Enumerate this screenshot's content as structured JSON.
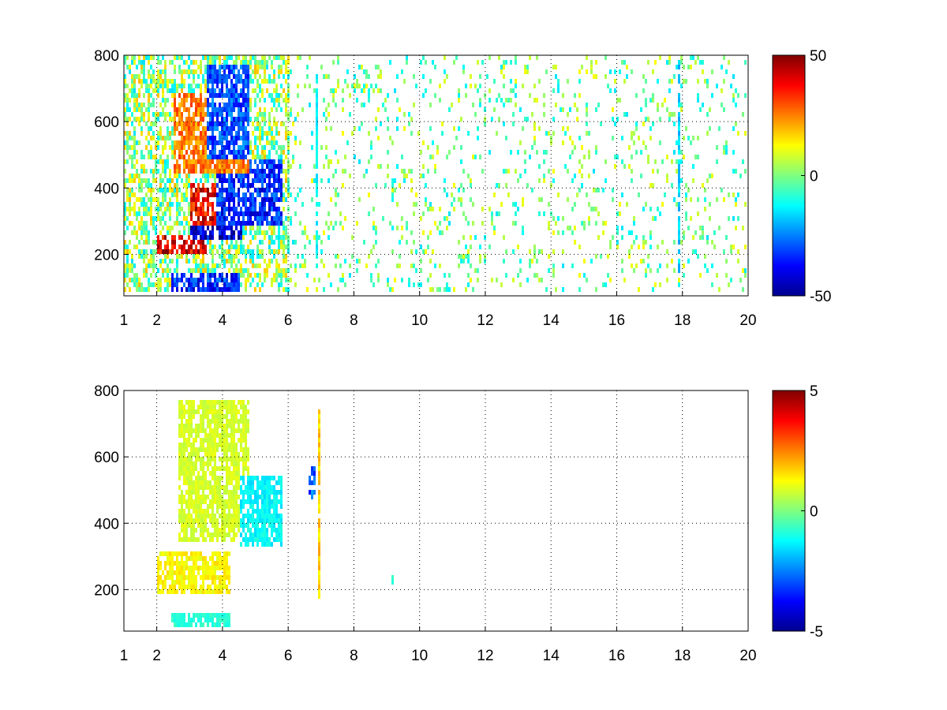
{
  "chart_data": [
    {
      "type": "heatmap",
      "title": "",
      "xlabel": "",
      "ylabel": "",
      "xlim": [
        1,
        20
      ],
      "ylim": [
        75,
        800
      ],
      "xticks": [
        1,
        2,
        4,
        6,
        8,
        10,
        12,
        14,
        16,
        18,
        20
      ],
      "xtick_labels": [
        "1",
        "2",
        "4",
        "6",
        "8",
        "10",
        "12",
        "14",
        "16",
        "18",
        "20"
      ],
      "yticks": [
        200,
        400,
        600,
        800
      ],
      "ytick_labels": [
        "200",
        "400",
        "600",
        "800"
      ],
      "grid": true,
      "colormap": "jet",
      "colorbar": {
        "range": [
          -50,
          50
        ],
        "ticks": [
          50,
          0,
          -50
        ],
        "tick_labels": [
          "50",
          "0",
          "-50"
        ]
      },
      "features": [
        {
          "x_range": [
            2.0,
            3.5
          ],
          "y": 240,
          "value": 50
        },
        {
          "x_range": [
            3.0,
            4.5
          ],
          "y_range": [
            300,
            420
          ],
          "value": 45
        },
        {
          "x_range": [
            3.0,
            4.6
          ],
          "y_range": [
            250,
            300
          ],
          "value": -50
        },
        {
          "x_range": [
            3.8,
            5.8
          ],
          "y_range": [
            300,
            500
          ],
          "value": -40
        },
        {
          "x_range": [
            2.5,
            4.8
          ],
          "y_range": [
            450,
            700
          ],
          "value": 30
        },
        {
          "x_range": [
            3.5,
            4.8
          ],
          "y_range": [
            500,
            780
          ],
          "value": -35
        },
        {
          "x_range": [
            2.4,
            4.5
          ],
          "y": 120,
          "value": -40
        },
        {
          "x_range": [
            6.8,
            6.9
          ],
          "y_range": [
            150,
            750
          ],
          "value": -15
        },
        {
          "x_range": [
            17.8,
            17.9
          ],
          "y_range": [
            150,
            800
          ],
          "value": -20
        }
      ]
    },
    {
      "type": "heatmap",
      "title": "",
      "xlabel": "",
      "ylabel": "",
      "xlim": [
        1,
        20
      ],
      "ylim": [
        75,
        800
      ],
      "xticks": [
        1,
        2,
        4,
        6,
        8,
        10,
        12,
        14,
        16,
        18,
        20
      ],
      "xtick_labels": [
        "1",
        "2",
        "4",
        "6",
        "8",
        "10",
        "12",
        "14",
        "16",
        "18",
        "20"
      ],
      "yticks": [
        200,
        400,
        600,
        800
      ],
      "ytick_labels": [
        "200",
        "400",
        "600",
        "800"
      ],
      "grid": true,
      "colormap": "jet",
      "colorbar": {
        "range": [
          -5,
          5
        ],
        "ticks": [
          5,
          0,
          -5
        ],
        "tick_labels": [
          "5",
          "0",
          "-5"
        ]
      },
      "features": [
        {
          "x_range": [
            2.0,
            4.2
          ],
          "y_range": [
            200,
            320
          ],
          "value": 1.5
        },
        {
          "x_range": [
            2.6,
            4.8
          ],
          "y_range": [
            350,
            780
          ],
          "value": 1.0
        },
        {
          "x_range": [
            4.5,
            5.8
          ],
          "y_range": [
            330,
            550
          ],
          "value": -1.5
        },
        {
          "x_range": [
            2.4,
            4.2
          ],
          "y": 110,
          "value": -1.0
        },
        {
          "x_range": [
            6.85,
            6.95
          ],
          "y_range": [
            160,
            750
          ],
          "value": 2.0
        },
        {
          "x_range": [
            6.6,
            6.8
          ],
          "y_range": [
            480,
            580
          ],
          "value": -3.5
        },
        {
          "x_range": [
            9.1,
            9.2
          ],
          "y_range": [
            220,
            250
          ],
          "value": -1.0
        }
      ]
    }
  ]
}
